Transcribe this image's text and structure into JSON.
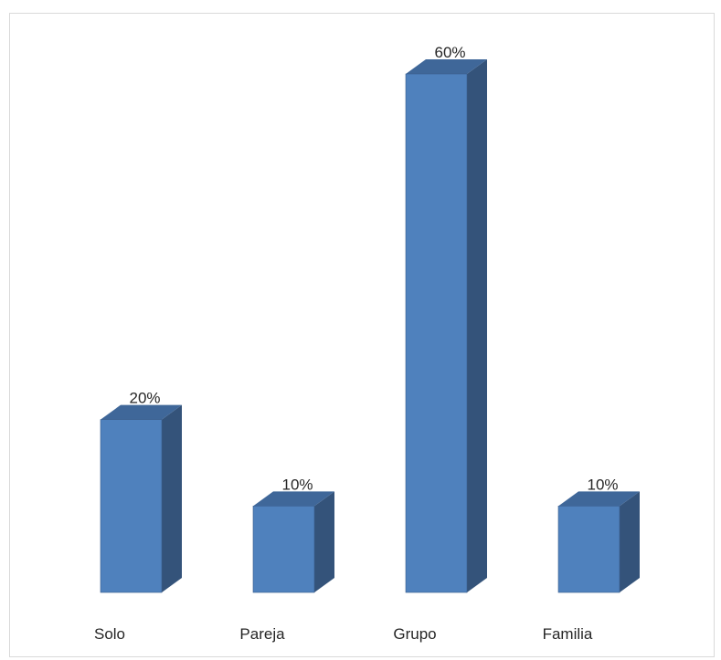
{
  "chart_data": {
    "type": "bar",
    "categories": [
      "Solo",
      "Pareja",
      "Grupo",
      "Familia"
    ],
    "values": [
      20,
      10,
      60,
      10
    ],
    "data_labels": [
      "20%",
      "10%",
      "60%",
      "10%"
    ],
    "title": "",
    "xlabel": "",
    "ylabel": "",
    "ylim": [
      0,
      60
    ],
    "grid": false,
    "legend": "none",
    "style": "3d-column",
    "colors": {
      "front": "#4f81bd",
      "side": "#34537a",
      "top": "#3f6799",
      "edge": "#3b5f8d"
    }
  }
}
